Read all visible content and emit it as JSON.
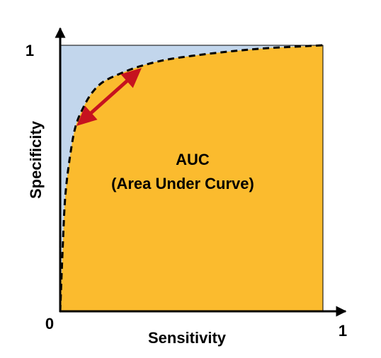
{
  "chart_data": {
    "type": "area",
    "title": "",
    "xlabel": "Sensitivity",
    "ylabel": "Specificity",
    "xlim": [
      0,
      1
    ],
    "ylim": [
      0,
      1
    ],
    "x_ticks": [
      "0",
      "1"
    ],
    "y_ticks": [
      "1"
    ],
    "grid": false,
    "legend": "none",
    "annotation": {
      "line1": "AUC",
      "line2": "(Area Under Curve)"
    },
    "series": [
      {
        "style": "dashed",
        "x": [
          0,
          0.01,
          0.02,
          0.04,
          0.06,
          0.09,
          0.12,
          0.16,
          0.22,
          0.3,
          0.4,
          0.5,
          0.6,
          0.7,
          0.8,
          0.9,
          1.0
        ],
        "y": [
          0,
          0.25,
          0.44,
          0.6,
          0.7,
          0.77,
          0.82,
          0.86,
          0.89,
          0.92,
          0.945,
          0.96,
          0.972,
          0.982,
          0.99,
          0.995,
          1.0
        ]
      }
    ],
    "colors": {
      "area_under": "#fbbb2e",
      "area_above": "#c2d6ec",
      "curve": "#000000",
      "arrow": "#c6121f",
      "axis": "#000000"
    }
  }
}
